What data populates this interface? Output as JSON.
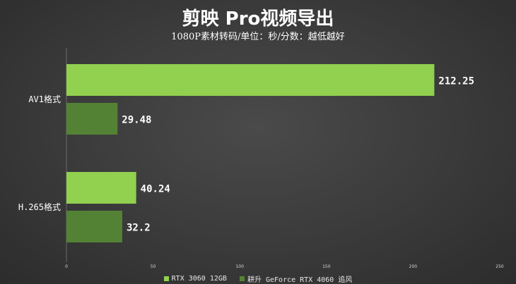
{
  "chart_data": {
    "type": "bar",
    "orientation": "horizontal",
    "title": "剪映 Pro视频导出",
    "subtitle": "1080P素材转码/单位：秒/分数：越低越好",
    "categories": [
      "AV1格式",
      "H.265格式"
    ],
    "series": [
      {
        "name": "RTX 3060 12GB",
        "values": [
          212.25,
          40.24
        ],
        "color": "#92d050"
      },
      {
        "name": "耕升 GeForce RTX 4060 追风",
        "values": [
          29.48,
          32.2
        ],
        "color": "#548235"
      }
    ],
    "value_labels": [
      [
        "212.25",
        "40.24"
      ],
      [
        "29.48",
        "32.2"
      ]
    ],
    "xlim": [
      0,
      250
    ],
    "xticks": [
      "0",
      "50",
      "100",
      "150",
      "200",
      "250"
    ],
    "legend_position": "bottom",
    "grid": false
  }
}
